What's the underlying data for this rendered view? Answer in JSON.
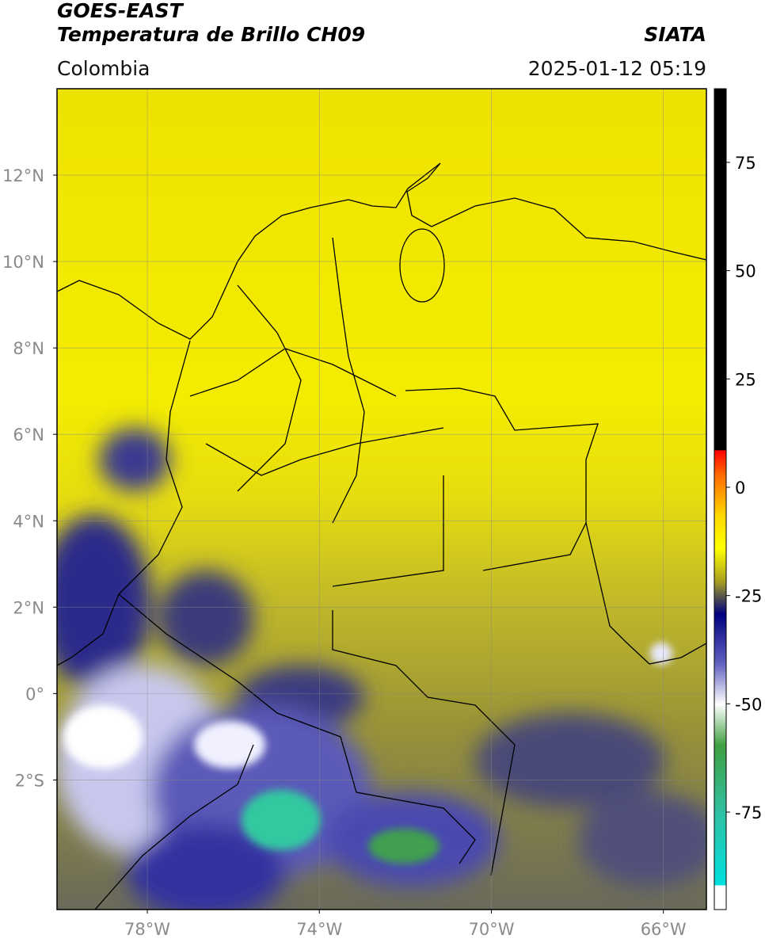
{
  "header": {
    "title": "GOES-EAST",
    "subtitle": "Temperatura de Brillo CH09",
    "region": "Colombia",
    "source": "SIATA",
    "datetime": "2025-01-12 05:19"
  },
  "chart_data": {
    "type": "map",
    "xlim": [
      -80.1,
      -65
    ],
    "ylim": [
      -5,
      14
    ],
    "xticks": [
      {
        "value": -78,
        "label": "78°W"
      },
      {
        "value": -74,
        "label": "74°W"
      },
      {
        "value": -70,
        "label": "70°W"
      },
      {
        "value": -66,
        "label": "66°W"
      }
    ],
    "yticks": [
      {
        "value": 12,
        "label": "12°N"
      },
      {
        "value": 10,
        "label": "10°N"
      },
      {
        "value": 8,
        "label": "8°N"
      },
      {
        "value": 6,
        "label": "6°N"
      },
      {
        "value": 4,
        "label": "4°N"
      },
      {
        "value": 2,
        "label": "2°N"
      },
      {
        "value": 0,
        "label": "0°"
      },
      {
        "value": -2,
        "label": "2°S"
      }
    ],
    "grid": true,
    "colorbar": {
      "lim": [
        -97.5,
        92
      ],
      "ticks": [
        75,
        50,
        25,
        0,
        -25,
        -50,
        -75
      ]
    }
  }
}
